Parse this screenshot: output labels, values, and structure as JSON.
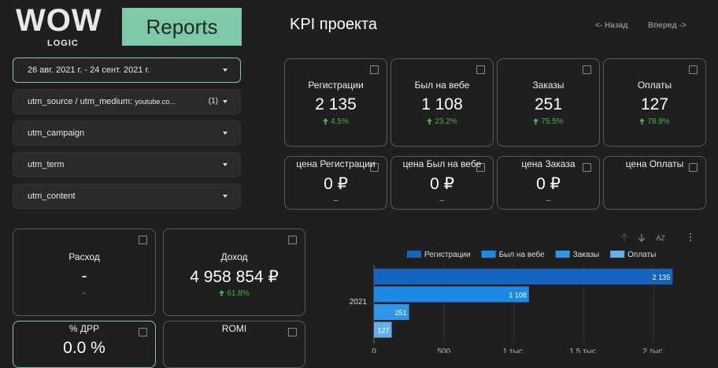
{
  "logo": {
    "brand": "WOW",
    "sub": "LOGIC"
  },
  "header": {
    "badge": "Reports",
    "title": "KPI проекта",
    "back": "<- Назад",
    "forward": "Вперед ->"
  },
  "filters": [
    {
      "label": "26 авг. 2021 г. - 24 сент. 2021 г."
    },
    {
      "label": "utm_source / utm_medium:",
      "value": "youtube.co...",
      "count": "(1)"
    },
    {
      "label": "utm_campaign"
    },
    {
      "label": "utm_term"
    },
    {
      "label": "utm_content"
    }
  ],
  "kpis": [
    {
      "label": "Регистрации",
      "value": "2 135",
      "change": "4.5%",
      "trend": "up"
    },
    {
      "label": "Был на вебе",
      "value": "1 108",
      "change": "23.2%",
      "trend": "up"
    },
    {
      "label": "Заказы",
      "value": "251",
      "change": "75.5%",
      "trend": "up"
    },
    {
      "label": "Оплаты",
      "value": "127",
      "change": "78.9%",
      "trend": "up"
    }
  ],
  "prices": [
    {
      "label": "цена Регистрации",
      "value": "0 ₽",
      "change": "–"
    },
    {
      "label": "цена Был на вебе",
      "value": "0 ₽",
      "change": "–"
    },
    {
      "label": "цена Заказа",
      "value": "0 ₽",
      "change": "–"
    },
    {
      "label": "цена Оплаты"
    }
  ],
  "finance": [
    {
      "label": "Расход",
      "value": "-",
      "change": "-"
    },
    {
      "label": "Доход",
      "value": "4 958 854 ₽",
      "change": "61.8%",
      "trend": "up"
    },
    {
      "label": "% ДРР",
      "value": "0.0 %"
    },
    {
      "label": "ROMI"
    }
  ],
  "chart_toolbar": {
    "sort": "AZ"
  },
  "chart_data": {
    "type": "bar",
    "orientation": "horizontal",
    "categories": [
      "2021"
    ],
    "series": [
      {
        "name": "Регистрации",
        "color": "#1565c0",
        "values": [
          2135
        ],
        "value_labels": [
          "2 135"
        ]
      },
      {
        "name": "Был на вебе",
        "color": "#1e88e5",
        "values": [
          1108
        ],
        "value_labels": [
          "1 108"
        ]
      },
      {
        "name": "Заказы",
        "color": "#2f96ea",
        "values": [
          251
        ]
      },
      {
        "name": "Оплаты",
        "color": "#64aef0",
        "values": [
          127
        ]
      }
    ],
    "xlim": [
      0,
      2150
    ],
    "xticks": [
      0,
      500,
      {
        "value": 1000,
        "label": "1 тыс."
      },
      {
        "value": 1500,
        "label": "1,5 тыс."
      },
      {
        "value": 2000,
        "label": "2 тыс."
      }
    ]
  }
}
